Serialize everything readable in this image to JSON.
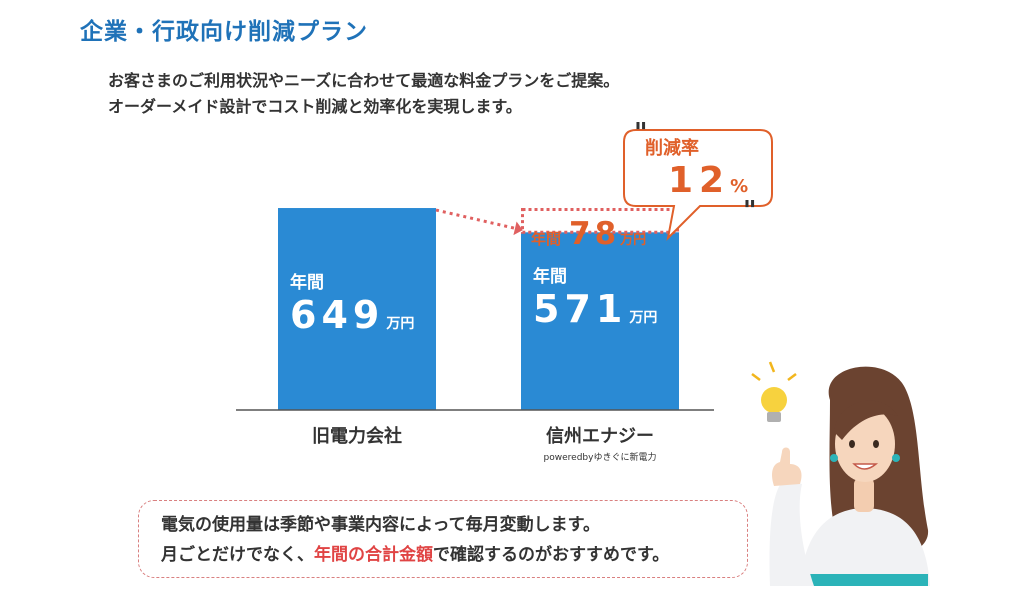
{
  "title": "企業・行政向け削減プラン",
  "intro": {
    "line1": "お客さまのご利用状況やニーズに合わせて最適な料金プランをご提案。",
    "line2": "オーダーメイド設計でコスト削減と効率化を実現します。"
  },
  "colors": {
    "bar": "#2a8ad4",
    "accent": "#e0602a",
    "title": "#1f72b8",
    "dotted": "#e06060"
  },
  "chart_data": {
    "type": "bar",
    "categories": [
      "旧電力会社",
      "信州エナジー"
    ],
    "category_subtitles": [
      "",
      "poweredbyゆきぐに新電力"
    ],
    "values": [
      649,
      571
    ],
    "value_prefix": "年間",
    "unit": "万円",
    "difference": {
      "prefix": "年間",
      "value": 78,
      "unit": "万円"
    },
    "reduction_rate": {
      "label": "削減率",
      "value": 12,
      "unit": "%"
    },
    "grid": false,
    "legend": "none"
  },
  "note": {
    "line1": "電気の使用量は季節や事業内容によって毎月変動します。",
    "line2_pre": "月ごとだけでなく、",
    "line2_highlight": "年間の合計金額",
    "line2_post": "で確認するのがおすすめです。"
  },
  "illustration": {
    "subject": "woman-pointing-up-icon",
    "accessory": "light-bulb-icon"
  }
}
